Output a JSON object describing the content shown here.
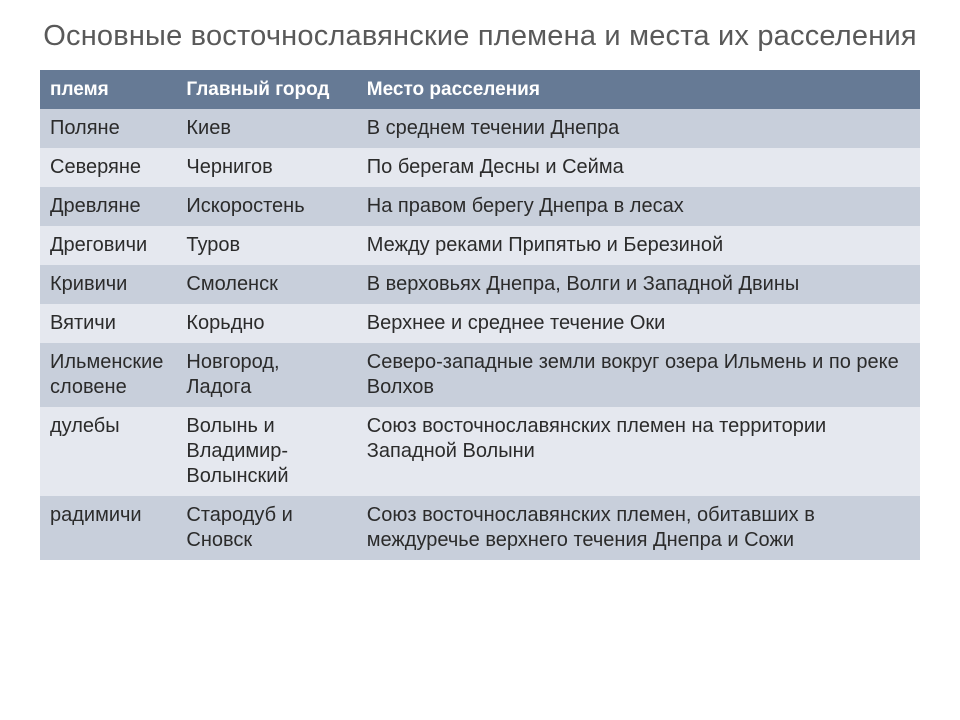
{
  "title": "Основные восточнославянские племена и места их расселения",
  "table": {
    "header_bg": "#667a95",
    "header_fg": "#ffffff",
    "row_odd_bg": "#c8cfdb",
    "row_even_bg": "#e5e8ef",
    "text_color": "#2b2b2b",
    "title_color": "#595959",
    "title_fontsize": 29,
    "header_fontsize": 19,
    "cell_fontsize": 20,
    "col_widths_pct": [
      15.5,
      20.5,
      64.0
    ],
    "columns": [
      "племя",
      "Главный город",
      "Место расселения"
    ],
    "rows": [
      {
        "tribe": "Поляне",
        "city": "Киев",
        "place": "В среднем течении Днепра"
      },
      {
        "tribe": "Северяне",
        "city": "Чернигов",
        "place": "По берегам Десны и Сейма"
      },
      {
        "tribe": "Древляне",
        "city": "Искоростень",
        "place": "На правом берегу Днепра в лесах"
      },
      {
        "tribe": "Дреговичи",
        "city": "Туров",
        "place": "Между реками Припятью и Березиной"
      },
      {
        "tribe": "Кривичи",
        "city": "Смоленск",
        "place": "В верховьях Днепра, Волги и Западной Двины"
      },
      {
        "tribe": "Вятичи",
        "city": "Корьдно",
        "place": "Верхнее и среднее течение Оки"
      },
      {
        "tribe": "Ильменские словене",
        "city": "Новгород, Ладога",
        "place": "Северо-западные земли вокруг озера Ильмень и по реке Волхов"
      },
      {
        "tribe": "дулебы",
        "city": "Волынь и Владимир-Волынский",
        "place": "Союз восточнославянских племен на территории Западной Волыни"
      },
      {
        "tribe": "радимичи",
        "city": "Стародуб и Сновск",
        "place": "Союз восточнославянских племен, обитавших в междуречье верхнего течения Днепра и Сожи"
      }
    ]
  }
}
